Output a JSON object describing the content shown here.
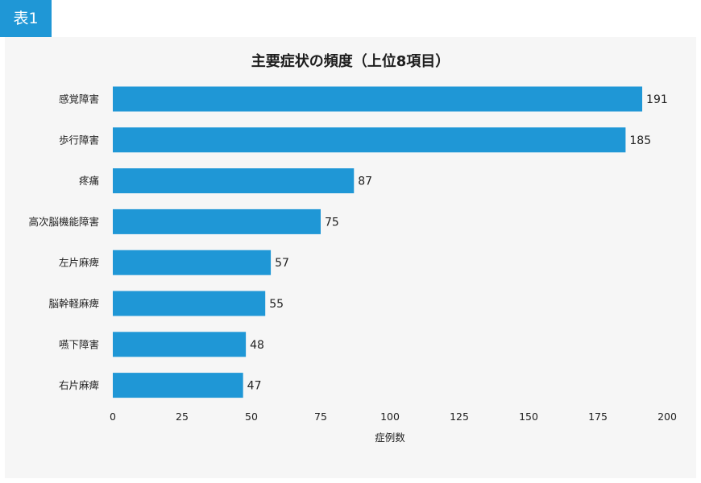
{
  "badge": "表1",
  "chart_data": {
    "type": "bar",
    "orientation": "horizontal",
    "title": "主要症状の頻度（上位8項目）",
    "xlabel": "症例数",
    "ylabel": "",
    "categories": [
      "感覚障害",
      "歩行障害",
      "疼痛",
      "高次脳機能障害",
      "左片麻痺",
      "脳幹軽麻痺",
      "嚥下障害",
      "右片麻痺"
    ],
    "values": [
      191,
      185,
      87,
      75,
      57,
      55,
      48,
      47
    ],
    "xlim": [
      0,
      200
    ],
    "xticks": [
      0,
      25,
      50,
      75,
      100,
      125,
      150,
      175,
      200
    ],
    "bar_color": "#1f97d6",
    "grid": false,
    "legend": "none"
  }
}
